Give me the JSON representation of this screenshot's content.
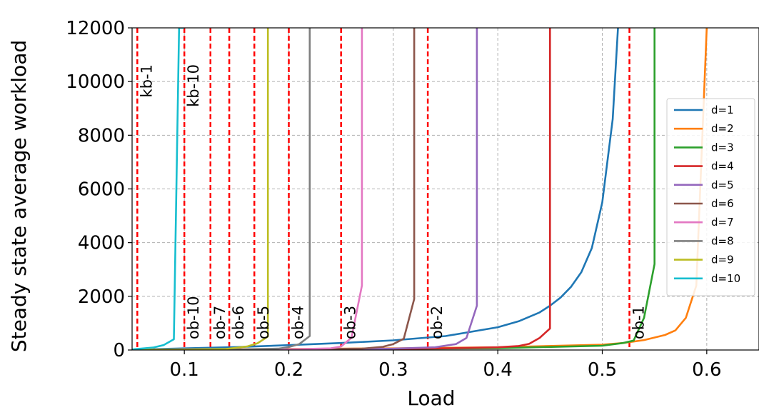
{
  "chart_data": {
    "type": "line",
    "title": "",
    "xlabel": "Load",
    "ylabel": "Steady state average workload",
    "xlim": [
      0.05,
      0.65
    ],
    "ylim": [
      0,
      12000
    ],
    "xticks": [
      0.1,
      0.2,
      0.3,
      0.4,
      0.5,
      0.6
    ],
    "xtick_labels": [
      "0.1",
      "0.2",
      "0.3",
      "0.4",
      "0.5",
      "0.6"
    ],
    "yticks": [
      0,
      2000,
      4000,
      6000,
      8000,
      10000,
      12000
    ],
    "ytick_labels": [
      "0",
      "2000",
      "4000",
      "6000",
      "8000",
      "10000",
      "12000"
    ],
    "grid": true,
    "legend_position": "center-right",
    "series": [
      {
        "name": "d=1",
        "color": "#1f77b4",
        "x": [
          0.05,
          0.1,
          0.15,
          0.2,
          0.25,
          0.3,
          0.35,
          0.4,
          0.42,
          0.44,
          0.45,
          0.46,
          0.47,
          0.48,
          0.49,
          0.5,
          0.51,
          0.515
        ],
        "y": [
          10,
          60,
          110,
          180,
          260,
          360,
          520,
          850,
          1070,
          1400,
          1650,
          1950,
          2350,
          2900,
          3800,
          5500,
          8600,
          12000
        ]
      },
      {
        "name": "d=2",
        "color": "#ff7f0e",
        "x": [
          0.05,
          0.1,
          0.2,
          0.3,
          0.4,
          0.5,
          0.52,
          0.54,
          0.56,
          0.57,
          0.58,
          0.59,
          0.6
        ],
        "y": [
          5,
          20,
          40,
          60,
          100,
          200,
          260,
          370,
          560,
          730,
          1200,
          2400,
          12000
        ]
      },
      {
        "name": "d=3",
        "color": "#2ca02c",
        "x": [
          0.05,
          0.1,
          0.2,
          0.3,
          0.4,
          0.5,
          0.52,
          0.53,
          0.54,
          0.55,
          0.55
        ],
        "y": [
          5,
          10,
          20,
          40,
          70,
          160,
          260,
          350,
          1200,
          3200,
          12000
        ]
      },
      {
        "name": "d=4",
        "color": "#d62728",
        "x": [
          0.05,
          0.1,
          0.2,
          0.3,
          0.35,
          0.4,
          0.42,
          0.43,
          0.44,
          0.45,
          0.45
        ],
        "y": [
          5,
          10,
          20,
          40,
          60,
          100,
          150,
          230,
          450,
          800,
          12000
        ]
      },
      {
        "name": "d=5",
        "color": "#9467bd",
        "x": [
          0.05,
          0.1,
          0.2,
          0.3,
          0.34,
          0.36,
          0.37,
          0.38,
          0.38
        ],
        "y": [
          5,
          10,
          20,
          50,
          100,
          220,
          450,
          1650,
          12000
        ]
      },
      {
        "name": "d=6",
        "color": "#8c564b",
        "x": [
          0.05,
          0.1,
          0.2,
          0.27,
          0.29,
          0.3,
          0.31,
          0.32,
          0.32
        ],
        "y": [
          5,
          10,
          20,
          50,
          120,
          220,
          420,
          1900,
          12000
        ]
      },
      {
        "name": "d=7",
        "color": "#e377c2",
        "x": [
          0.05,
          0.1,
          0.2,
          0.24,
          0.25,
          0.26,
          0.27,
          0.27
        ],
        "y": [
          5,
          10,
          20,
          60,
          130,
          460,
          2400,
          12000
        ]
      },
      {
        "name": "d=8",
        "color": "#7f7f7f",
        "x": [
          0.05,
          0.1,
          0.15,
          0.19,
          0.2,
          0.21,
          0.22,
          0.22
        ],
        "y": [
          5,
          10,
          20,
          50,
          110,
          220,
          520,
          12000
        ]
      },
      {
        "name": "d=9",
        "color": "#bcbd22",
        "x": [
          0.05,
          0.1,
          0.14,
          0.16,
          0.17,
          0.18,
          0.18
        ],
        "y": [
          5,
          10,
          40,
          130,
          250,
          500,
          12000
        ]
      },
      {
        "name": "d=10",
        "color": "#17becf",
        "x": [
          0.05,
          0.07,
          0.08,
          0.09,
          0.095,
          0.1
        ],
        "y": [
          20,
          90,
          180,
          400,
          12000,
          12000
        ]
      }
    ],
    "vertical_lines": [
      {
        "label": "kb-1",
        "x": 0.055,
        "label_pos": "top"
      },
      {
        "label": "kb-10",
        "x": 0.1,
        "label_pos": "top"
      },
      {
        "label": "ob-10",
        "x": 0.1,
        "label_pos": "bottom"
      },
      {
        "label": "ob-7",
        "x": 0.125,
        "label_pos": "bottom"
      },
      {
        "label": "ob-6",
        "x": 0.143,
        "label_pos": "bottom"
      },
      {
        "label": "ob-5",
        "x": 0.167,
        "label_pos": "bottom"
      },
      {
        "label": "ob-4",
        "x": 0.2,
        "label_pos": "bottom"
      },
      {
        "label": "ob-3",
        "x": 0.25,
        "label_pos": "bottom"
      },
      {
        "label": "ob-2",
        "x": 0.333,
        "label_pos": "bottom"
      },
      {
        "label": "ob-1",
        "x": 0.526,
        "label_pos": "bottom"
      }
    ],
    "vertical_line_color": "#ff0000"
  }
}
